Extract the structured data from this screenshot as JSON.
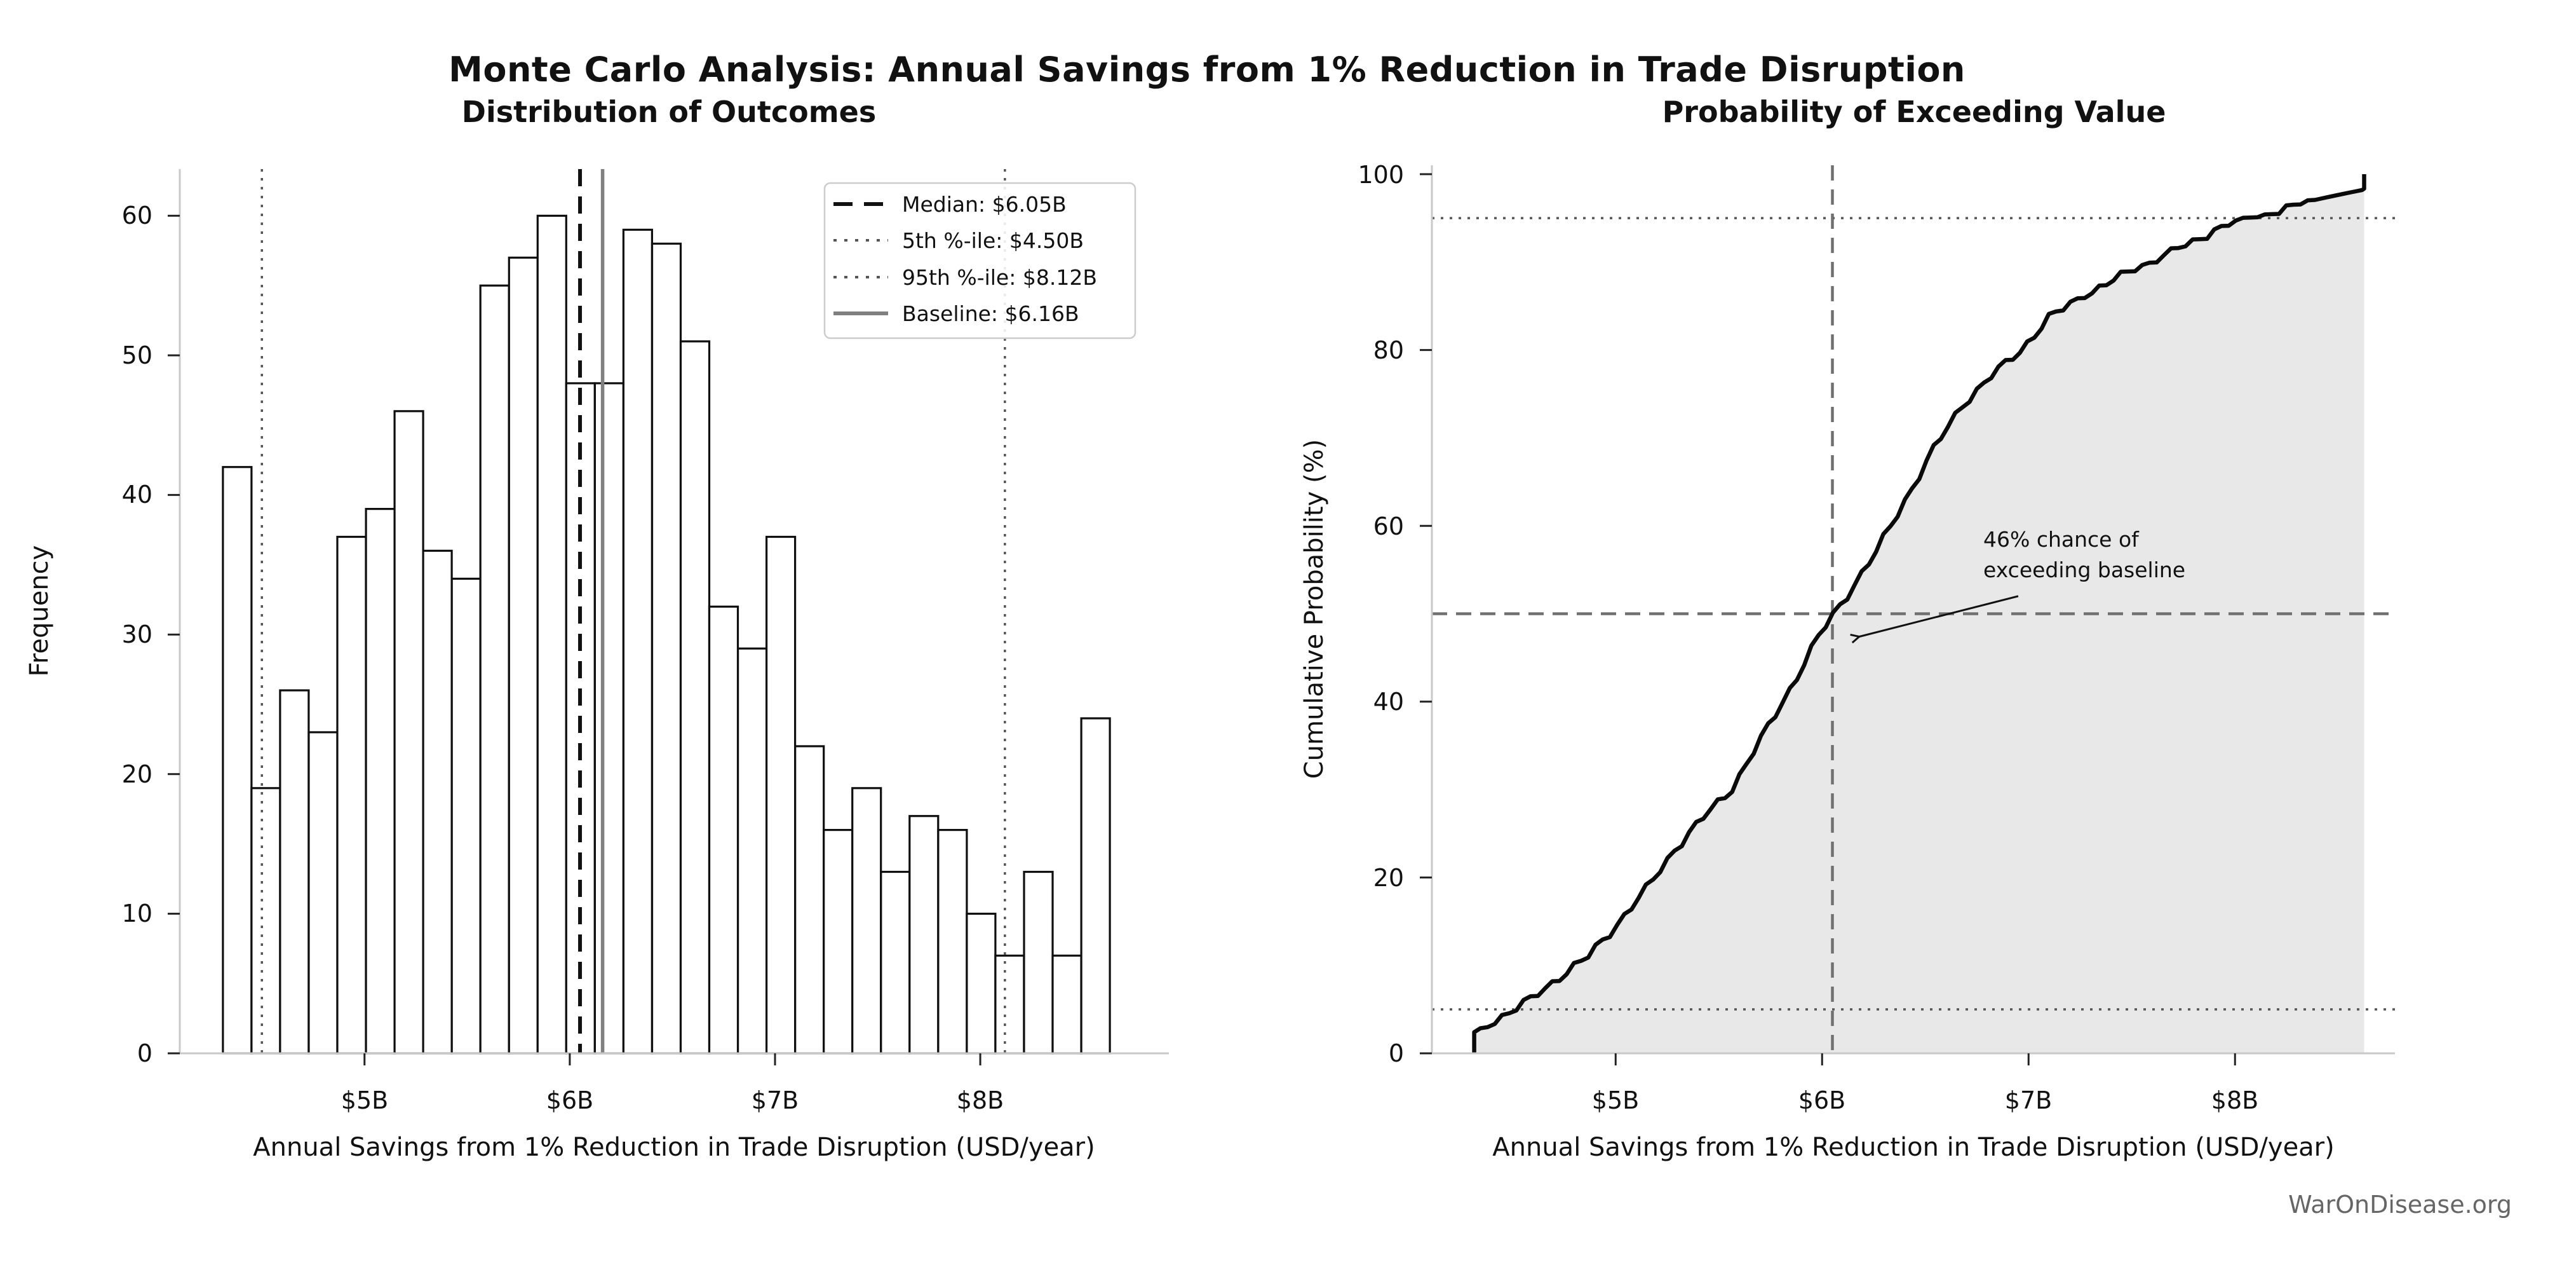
{
  "figure": {
    "title": "Monte Carlo Analysis: Annual Savings from 1% Reduction in Trade Disruption",
    "watermark": "WarOnDisease.org"
  },
  "chart_data": [
    {
      "type": "bar",
      "subtype": "histogram",
      "title": "Distribution of Outcomes",
      "xlabel": "Annual Savings from 1% Reduction in Trade Disruption (USD/year)",
      "ylabel": "Frequency",
      "xlim": [
        4.1,
        8.92
      ],
      "ylim": [
        0,
        63.3
      ],
      "grid": false,
      "histogram": {
        "bin_start": 4.31,
        "bin_width": 0.1394,
        "counts": [
          42,
          19,
          26,
          23,
          37,
          39,
          46,
          36,
          34,
          55,
          57,
          60,
          48,
          48,
          59,
          58,
          51,
          32,
          29,
          37,
          22,
          16,
          19,
          13,
          17,
          16,
          10,
          7,
          13,
          7,
          24
        ],
        "total_samples": 1000,
        "bar_fill": "#ffffff",
        "bar_edge": "#0f0f0f"
      },
      "xtick_values": [
        5,
        6,
        7,
        8
      ],
      "xtick_labels": [
        "$5B",
        "$6B",
        "$7B",
        "$8B"
      ],
      "ytick_values": [
        0,
        10,
        20,
        30,
        40,
        50,
        60
      ],
      "ytick_labels": [
        "0",
        "10",
        "20",
        "30",
        "40",
        "50",
        "60"
      ],
      "ref_lines": [
        {
          "name": "median",
          "x": 6.05,
          "style": "dashed-bold",
          "color": "#111111",
          "label": "Median: $6.05B"
        },
        {
          "name": "pct5",
          "x": 4.5,
          "style": "dotted",
          "color": "#555555",
          "label": "5th %-ile: $4.50B"
        },
        {
          "name": "pct95",
          "x": 8.12,
          "style": "dotted",
          "color": "#555555",
          "label": "95th %-ile: $8.12B"
        },
        {
          "name": "baseline",
          "x": 6.16,
          "style": "solid",
          "color": "#808080",
          "label": "Baseline: $6.16B"
        }
      ],
      "legend_position": "upper right"
    },
    {
      "type": "line",
      "subtype": "empirical-cdf",
      "title": "Probability of Exceeding Value",
      "xlabel": "Annual Savings from 1% Reduction in Trade Disruption (USD/year)",
      "ylabel": "Cumulative Probability (%)",
      "xlim": [
        4.11,
        8.77
      ],
      "ylim": [
        0,
        101
      ],
      "grid": false,
      "cdf": {
        "x_start": 4.31,
        "x_step": 0.1394,
        "cumulative_pct": [
          0,
          4.2,
          6.1,
          8.7,
          11.0,
          14.7,
          18.6,
          23.2,
          26.8,
          30.2,
          35.7,
          41.4,
          47.4,
          52.2,
          57.0,
          62.9,
          68.7,
          73.8,
          77.0,
          79.9,
          83.6,
          85.8,
          87.4,
          89.3,
          90.6,
          92.3,
          93.9,
          94.9,
          95.6,
          96.9,
          97.6,
          100
        ],
        "line_color": "#0a0a0a",
        "fill_color": "#e8e8e8"
      },
      "xtick_values": [
        5,
        6,
        7,
        8
      ],
      "xtick_labels": [
        "$5B",
        "$6B",
        "$7B",
        "$8B"
      ],
      "ytick_values": [
        0,
        20,
        40,
        60,
        80,
        100
      ],
      "ytick_labels": [
        "0",
        "20",
        "40",
        "60",
        "80",
        "100"
      ],
      "hlines": [
        {
          "name": "pct5-line",
          "y": 5,
          "style": "dotted",
          "color": "#555555"
        },
        {
          "name": "pct95-line",
          "y": 95,
          "style": "dotted",
          "color": "#555555"
        },
        {
          "name": "fifty-line",
          "y": 50,
          "style": "dashed",
          "color": "#707070"
        }
      ],
      "vlines": [
        {
          "name": "median-line",
          "x": 6.05,
          "style": "dashed",
          "color": "#707070"
        }
      ],
      "annotation": {
        "lines": [
          "46% chance of",
          "exceeding baseline"
        ],
        "text_x": 6.78,
        "text_y": 58,
        "arrow_start": [
          6.95,
          52.0
        ],
        "arrow_tip": [
          6.18,
          47.4
        ]
      }
    }
  ]
}
